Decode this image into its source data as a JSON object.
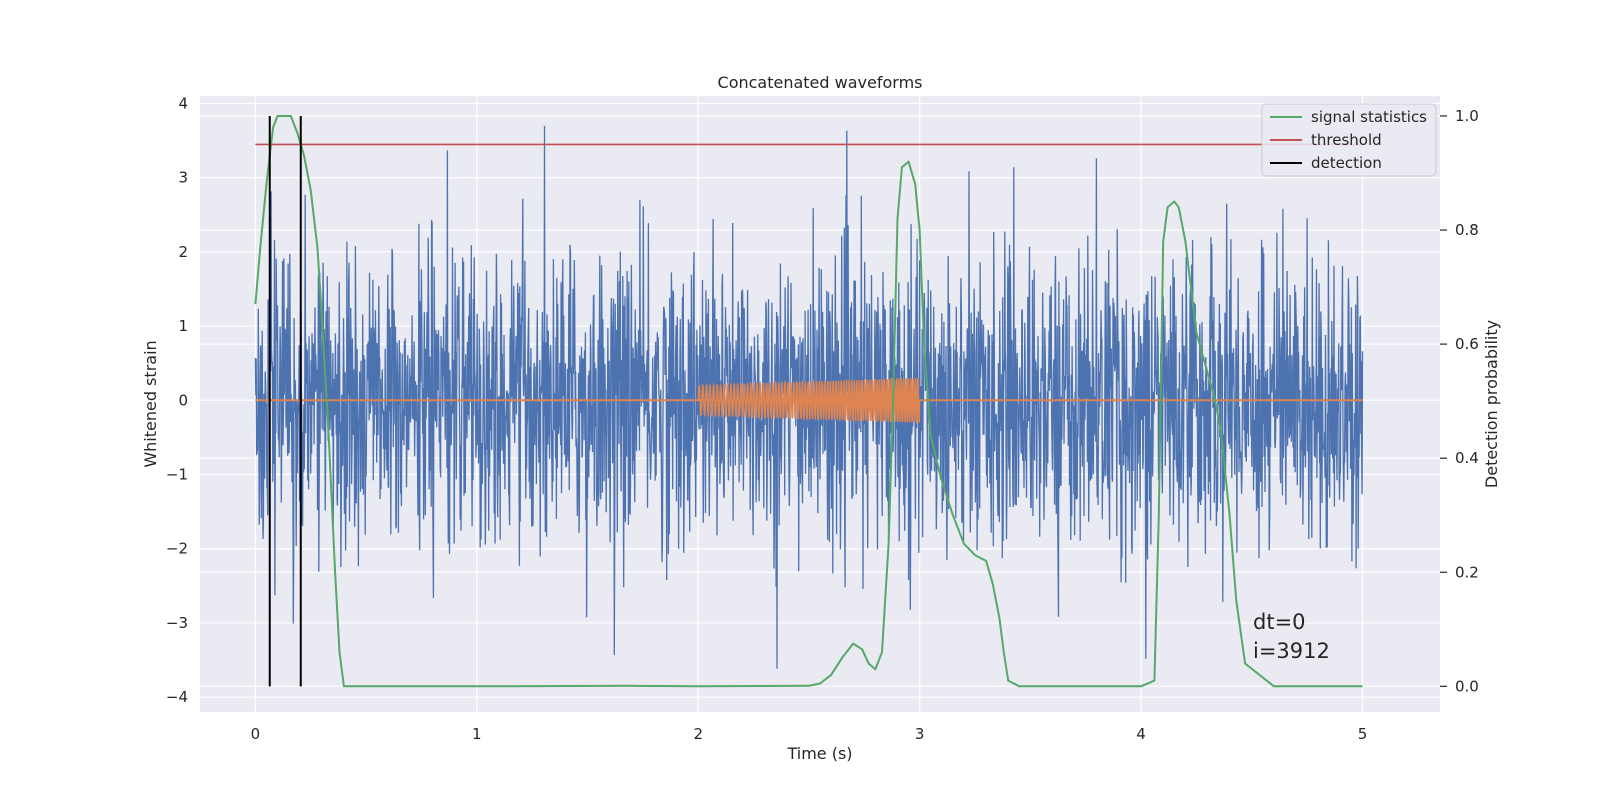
{
  "chart_data": {
    "type": "line",
    "title": "Concatenated waveforms",
    "xlabel": "Time (s)",
    "ylabel": "Whitened strain",
    "y2label": "Detection probability",
    "xlim": [
      -0.25,
      5.35
    ],
    "ylim": [
      -4.2,
      4.1
    ],
    "y2lim": [
      -0.045,
      1.035
    ],
    "xticks": [
      0,
      1,
      2,
      3,
      4,
      5
    ],
    "yticks": [
      -4,
      -3,
      -2,
      -1,
      0,
      1,
      2,
      3,
      4
    ],
    "y2ticks": [
      0.0,
      0.2,
      0.4,
      0.6,
      0.8,
      1.0
    ],
    "grid": true,
    "legend_position": "top-right",
    "colors": {
      "strain": "#4c72b0",
      "template": "#dd8452",
      "statistics": "#55a868",
      "threshold": "#c44e52",
      "detection": "#000000",
      "background": "#eaeaf2",
      "grid": "#ffffff"
    },
    "noise": {
      "x_range": [
        0,
        5
      ],
      "envelope_typical": 1.6,
      "peak_max": 3.7,
      "peak_min": -3.85
    },
    "template": {
      "x_range": [
        2,
        3
      ],
      "amplitude_start": 0.2,
      "amplitude_end": 0.3,
      "flat_value": 0
    },
    "series": [
      {
        "name": "signal statistics",
        "axis": "right",
        "x": [
          0,
          0.02,
          0.05,
          0.08,
          0.1,
          0.13,
          0.16,
          0.19,
          0.22,
          0.25,
          0.28,
          0.3,
          0.33,
          0.36,
          0.38,
          0.4,
          0.45,
          1.0,
          1.7,
          2.0,
          2.5,
          2.55,
          2.6,
          2.65,
          2.7,
          2.74,
          2.77,
          2.8,
          2.83,
          2.86,
          2.88,
          2.9,
          2.92,
          2.95,
          2.98,
          3.0,
          3.02,
          3.05,
          3.08,
          3.1,
          3.15,
          3.2,
          3.25,
          3.3,
          3.33,
          3.36,
          3.38,
          3.4,
          3.45,
          3.6,
          4.0,
          4.06,
          4.08,
          4.1,
          4.12,
          4.15,
          4.17,
          4.2,
          4.25,
          4.3,
          4.33,
          4.36,
          4.4,
          4.43,
          4.47,
          4.6,
          5.0
        ],
        "values": [
          0.67,
          0.76,
          0.88,
          0.98,
          1.0,
          1.0,
          1.0,
          0.97,
          0.93,
          0.87,
          0.77,
          0.65,
          0.45,
          0.2,
          0.06,
          0.0,
          0.0,
          0.0,
          0.001,
          0.0,
          0.001,
          0.005,
          0.02,
          0.05,
          0.075,
          0.065,
          0.04,
          0.03,
          0.06,
          0.25,
          0.5,
          0.82,
          0.91,
          0.92,
          0.88,
          0.8,
          0.6,
          0.44,
          0.39,
          0.36,
          0.3,
          0.25,
          0.23,
          0.22,
          0.18,
          0.12,
          0.06,
          0.01,
          0.0,
          0.0,
          0.0,
          0.01,
          0.3,
          0.78,
          0.84,
          0.85,
          0.84,
          0.78,
          0.62,
          0.55,
          0.51,
          0.45,
          0.3,
          0.15,
          0.04,
          0.0,
          0.0
        ]
      },
      {
        "name": "threshold",
        "axis": "right",
        "x": [
          0,
          5
        ],
        "values": [
          0.95,
          0.95
        ]
      },
      {
        "name": "detection",
        "axis": "right",
        "x_positions": [
          0.065,
          0.205
        ],
        "range": [
          0.0,
          1.0
        ]
      }
    ],
    "annotations": [
      "dt=0",
      "i=3912"
    ]
  }
}
